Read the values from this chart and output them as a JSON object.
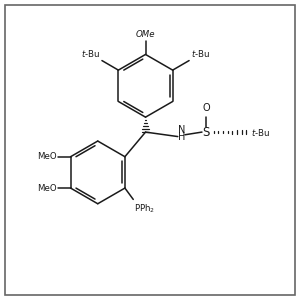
{
  "background_color": "#ffffff",
  "border_color": "#555555",
  "line_color": "#1a1a1a",
  "line_width": 1.1,
  "figsize": [
    3.0,
    3.0
  ],
  "dpi": 100,
  "xlim": [
    0,
    10
  ],
  "ylim": [
    0,
    10
  ]
}
